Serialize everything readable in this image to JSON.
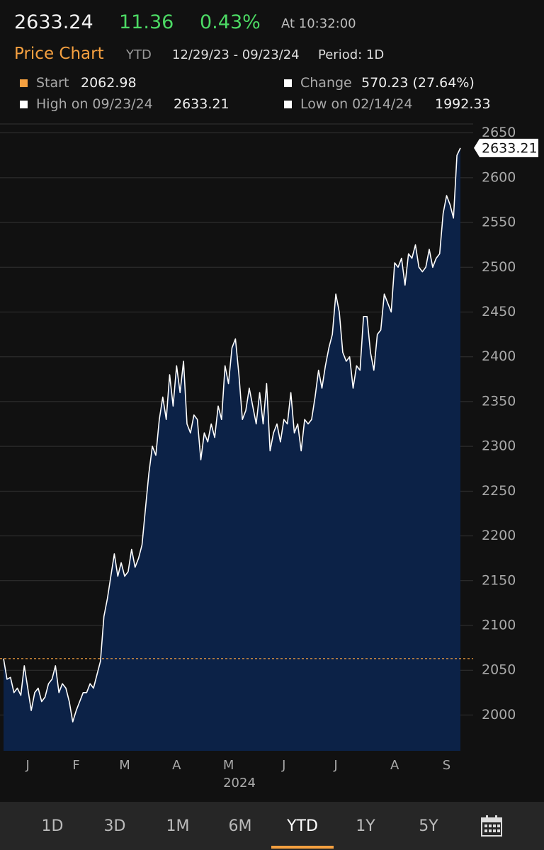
{
  "quote": {
    "price": "2633.24",
    "change": "11.36",
    "change_pct": "0.43%",
    "time": "At 10:32:00"
  },
  "chart_header": {
    "title": "Price Chart",
    "range": "YTD",
    "dates": "12/29/23 - 09/23/24",
    "period": "Period: 1D"
  },
  "stats": [
    {
      "label": "Start",
      "value": "2062.98"
    },
    {
      "label": "Change",
      "value": "570.23 (27.64%)"
    },
    {
      "label": "High on 09/23/24",
      "value": "2633.21"
    },
    {
      "label": "Low on 02/14/24",
      "value": "1992.33"
    }
  ],
  "chart_data": {
    "type": "area",
    "xlabel": "2024",
    "categories": [
      null,
      null,
      null,
      null,
      null,
      null,
      null,
      "J",
      null,
      null,
      null,
      null,
      null,
      null,
      null,
      null,
      null,
      null,
      null,
      null,
      null,
      "F",
      null,
      null,
      null,
      null,
      null,
      null,
      null,
      null,
      null,
      null,
      null,
      null,
      null,
      "M",
      null,
      null,
      null,
      null,
      null,
      null,
      null,
      null,
      null,
      null,
      null,
      null,
      null,
      null,
      "A",
      null,
      null,
      null,
      null,
      null,
      null,
      null,
      null,
      null,
      null,
      null,
      null,
      null,
      null,
      "M",
      null,
      null,
      null,
      null,
      null,
      null,
      null,
      null,
      null,
      null,
      null,
      null,
      null,
      null,
      null,
      "J",
      null,
      null,
      null,
      null,
      null,
      null,
      null,
      null,
      null,
      null,
      null,
      null,
      null,
      null,
      "J",
      null,
      null,
      null,
      null,
      null,
      null,
      null,
      null,
      null,
      null,
      null,
      null,
      null,
      null,
      null,
      null,
      "A",
      null,
      null,
      null,
      null,
      null,
      null,
      null,
      null,
      null,
      null,
      null,
      null,
      null,
      null,
      "S",
      null,
      null,
      null,
      null
    ],
    "series": [
      {
        "name": "Price",
        "color": "#ffffff",
        "fill": "#0c2247",
        "values": [
          2062.98,
          2040,
          2042,
          2025,
          2030,
          2022,
          2055,
          2030,
          2005,
          2025,
          2030,
          2015,
          2020,
          2035,
          2040,
          2055,
          2025,
          2035,
          2030,
          2015,
          1992.33,
          2005,
          2015,
          2025,
          2025,
          2035,
          2030,
          2045,
          2060,
          2110,
          2130,
          2155,
          2180,
          2155,
          2170,
          2155,
          2160,
          2185,
          2165,
          2175,
          2190,
          2230,
          2270,
          2300,
          2290,
          2330,
          2355,
          2330,
          2380,
          2345,
          2390,
          2360,
          2395,
          2325,
          2315,
          2335,
          2330,
          2285,
          2315,
          2305,
          2325,
          2310,
          2345,
          2330,
          2390,
          2370,
          2410,
          2420,
          2380,
          2330,
          2340,
          2365,
          2345,
          2325,
          2360,
          2325,
          2370,
          2295,
          2315,
          2325,
          2305,
          2330,
          2325,
          2360,
          2315,
          2325,
          2295,
          2330,
          2325,
          2330,
          2355,
          2385,
          2365,
          2390,
          2410,
          2425,
          2470,
          2450,
          2405,
          2395,
          2400,
          2365,
          2390,
          2385,
          2445,
          2445,
          2405,
          2385,
          2425,
          2430,
          2470,
          2460,
          2450,
          2505,
          2500,
          2510,
          2480,
          2515,
          2510,
          2525,
          2500,
          2495,
          2500,
          2520,
          2500,
          2510,
          2515,
          2560,
          2580,
          2570,
          2555,
          2625,
          2633.21
        ]
      }
    ],
    "reference_line": 2062.98,
    "reference_color": "#f5a040",
    "ylim": [
      1960,
      2660
    ],
    "yticks": [
      2000,
      2050,
      2100,
      2150,
      2200,
      2250,
      2300,
      2350,
      2400,
      2450,
      2500,
      2550,
      2600,
      2650
    ],
    "grid": true
  },
  "tabs": [
    "1D",
    "3D",
    "1M",
    "6M",
    "YTD",
    "1Y",
    "5Y"
  ],
  "active_tab": "YTD"
}
